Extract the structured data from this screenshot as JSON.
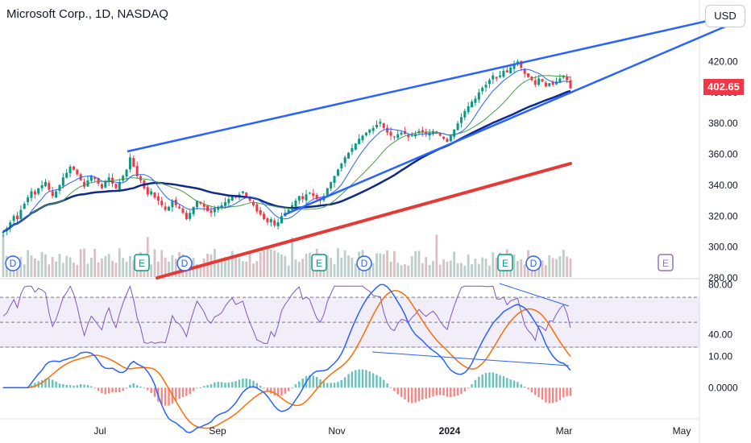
{
  "header": {
    "title": "Microsoft Corp., 1D, NASDAQ",
    "currency_button": "USD",
    "last_price": "402.65"
  },
  "colors": {
    "up": "#089981",
    "down": "#f23645",
    "trendline": "#2962ff",
    "ma_dark": "#0d2a8a",
    "ma_red": "#e53935",
    "ema_fast": "#2962ff",
    "ema_slow": "#43a047",
    "rsi": "#7e57c2",
    "macd": "#2962ff",
    "signal": "#ff6d00"
  },
  "chart_data": [
    {
      "type": "candlestick",
      "title": "Microsoft Corp., 1D, NASDAQ",
      "ylim": [
        280,
        440
      ],
      "yticks": [
        "420.00",
        "400.00",
        "380.00",
        "360.00",
        "340.00",
        "320.00",
        "300.00",
        "280.00"
      ],
      "xticks": [
        "Jul",
        "Sep",
        "Nov",
        "2024",
        "Mar",
        "May"
      ],
      "last_close": 402.65,
      "closes": [
        310,
        312,
        316,
        320,
        318,
        324,
        328,
        332,
        336,
        334,
        338,
        340,
        342,
        337,
        333,
        336,
        340,
        345,
        348,
        352,
        350,
        347,
        343,
        339,
        343,
        346,
        344,
        341,
        338,
        342,
        345,
        341,
        338,
        342,
        346,
        350,
        358,
        352,
        346,
        343,
        338,
        334,
        336,
        332,
        330,
        327,
        324,
        326,
        330,
        327,
        325,
        322,
        318,
        322,
        326,
        330,
        328,
        326,
        323,
        322,
        325,
        326,
        327,
        329,
        331,
        333,
        332,
        334,
        336,
        333,
        330,
        327,
        323,
        321,
        318,
        316,
        318,
        314,
        316,
        320,
        322,
        324,
        327,
        330,
        333,
        331,
        334,
        335,
        333,
        331,
        330,
        333,
        338,
        342,
        346,
        350,
        354,
        358,
        361,
        364,
        367,
        370,
        372,
        374,
        376,
        377,
        379,
        381,
        377,
        374,
        372,
        371,
        373,
        374,
        373,
        371,
        372,
        373,
        375,
        374,
        373,
        374,
        375,
        374,
        372,
        370,
        368,
        372,
        376,
        380,
        384,
        388,
        391,
        394,
        396,
        400,
        403,
        405,
        408,
        411,
        409,
        411,
        414,
        413,
        416,
        418,
        420,
        416,
        412,
        410,
        408,
        405,
        409,
        407,
        404,
        406,
        405,
        407,
        409,
        411,
        408,
        402.65
      ],
      "ma_50_from_index": 0,
      "ma_200": [
        {
          "date": "early Jul",
          "value": 280
        },
        {
          "date": "Mar",
          "value": 354
        }
      ],
      "volume_overlay": "present",
      "events": [
        {
          "code": "D",
          "label": "dividend"
        },
        {
          "code": "E",
          "label": "earnings"
        },
        {
          "code": "D",
          "label": "dividend"
        },
        {
          "code": "E",
          "label": "earnings"
        },
        {
          "code": "D",
          "label": "dividend"
        },
        {
          "code": "E",
          "label": "earnings"
        },
        {
          "code": "D",
          "label": "dividend"
        },
        {
          "code": "E",
          "label": "earnings (upcoming)"
        }
      ],
      "trendlines": "rising wedge"
    },
    {
      "type": "line",
      "name": "RSI",
      "ylim": [
        30,
        85
      ],
      "yticks": [
        "80.00",
        "40.00"
      ],
      "bands": [
        70,
        50,
        30
      ]
    },
    {
      "type": "line",
      "name": "MACD",
      "yticks": [
        "10.00",
        "0.0000"
      ]
    }
  ]
}
